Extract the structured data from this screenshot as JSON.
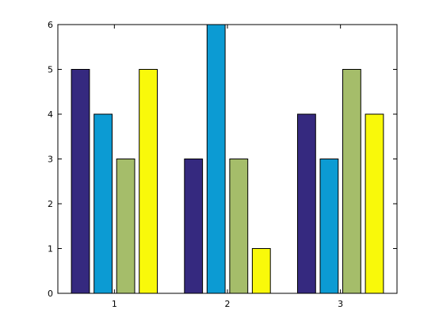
{
  "chart_data": {
    "type": "bar",
    "categories": [
      "1",
      "2",
      "3"
    ],
    "series": [
      {
        "values": [
          5,
          3,
          4
        ],
        "color": "#35297f"
      },
      {
        "values": [
          4,
          6,
          3
        ],
        "color": "#0c9bd3"
      },
      {
        "values": [
          3,
          3,
          5
        ],
        "color": "#a5bd6a"
      },
      {
        "values": [
          5,
          1,
          4
        ],
        "color": "#f9f90a"
      }
    ],
    "ylim": [
      0,
      6
    ],
    "yticks": [
      "0",
      "1",
      "2",
      "3",
      "4",
      "5",
      "6"
    ],
    "grid": false,
    "title": "",
    "xlabel": "",
    "ylabel": ""
  }
}
